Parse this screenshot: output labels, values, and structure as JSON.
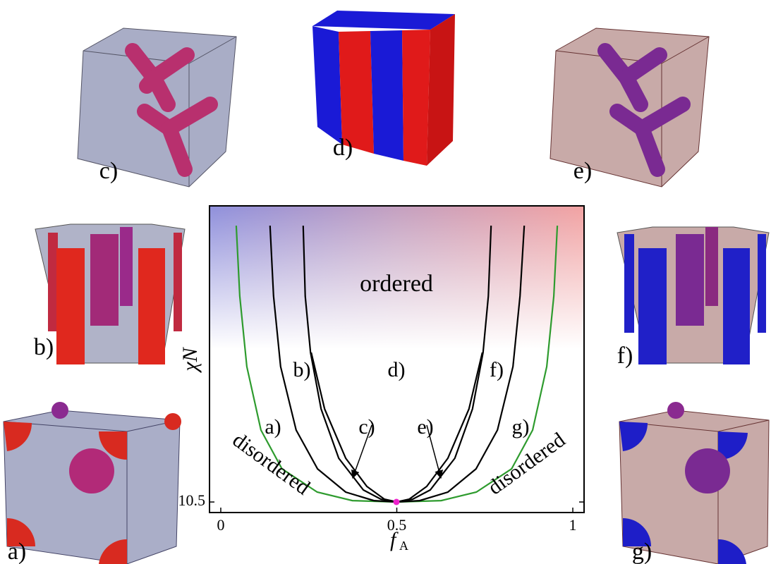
{
  "chart_data": {
    "type": "line",
    "xlabel": "f",
    "xlabel_subscript": "A",
    "ylabel": "χN",
    "xlim": [
      -0.032,
      1.032
    ],
    "ylim": [
      9.45,
      40
    ],
    "xticks": [
      0,
      0.5,
      1
    ],
    "yticks": [
      10.5
    ],
    "series": [
      {
        "color": "#2e9b2e",
        "x": [
          0.044,
          0.054,
          0.074,
          0.114,
          0.174,
          0.274,
          0.374,
          0.5,
          0.626,
          0.726,
          0.826,
          0.886,
          0.926,
          0.946,
          0.956
        ],
        "values": [
          38.03,
          31.01,
          23.99,
          17.67,
          13.8,
          11.49,
          10.64,
          10.5,
          10.64,
          11.49,
          13.8,
          17.67,
          23.99,
          31.01,
          38.03
        ]
      },
      {
        "color": "#000000",
        "x": [
          0.14,
          0.15,
          0.17,
          0.214,
          0.275,
          0.355,
          0.435,
          0.5,
          0.565,
          0.645,
          0.725,
          0.786,
          0.83,
          0.85,
          0.862
        ],
        "values": [
          38.03,
          31.01,
          23.99,
          17.67,
          13.8,
          11.49,
          10.64,
          10.5,
          10.64,
          11.49,
          13.8,
          17.67,
          23.99,
          31.01,
          38.03
        ]
      },
      {
        "color": "#000000",
        "x": [
          0.234,
          0.24,
          0.255,
          0.285,
          0.335,
          0.405,
          0.455,
          0.5,
          0.545,
          0.595,
          0.665,
          0.715,
          0.745,
          0.76,
          0.768
        ],
        "values": [
          38.03,
          31.01,
          25.39,
          19.77,
          14.86,
          11.7,
          10.78,
          10.5,
          10.78,
          11.7,
          14.86,
          19.77,
          25.39,
          31.01,
          38.03
        ]
      },
      {
        "color": "#000000",
        "x": [
          0.257,
          0.295,
          0.355,
          0.415,
          0.465,
          0.5,
          0.535,
          0.585,
          0.645,
          0.705,
          0.743
        ],
        "values": [
          25.39,
          19.77,
          14.86,
          12.05,
          10.78,
          10.5,
          10.78,
          12.05,
          14.86,
          19.77,
          25.39
        ]
      }
    ],
    "annotations": [
      "ordered",
      "disordered",
      "disordered",
      "a)",
      "b)",
      "c)",
      "d)",
      "e)",
      "f)",
      "g)"
    ]
  },
  "panels": [
    "c)",
    "d)",
    "e)",
    "b)",
    "f)",
    "a)",
    "g)"
  ]
}
